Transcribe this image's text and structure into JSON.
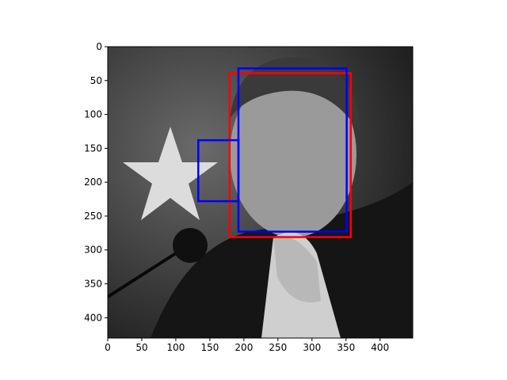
{
  "chart_data": {
    "type": "image",
    "xlim": [
      0,
      448
    ],
    "ylim": [
      430,
      0
    ],
    "xticks": [
      0,
      50,
      100,
      150,
      200,
      250,
      300,
      350,
      400
    ],
    "yticks": [
      0,
      50,
      100,
      150,
      200,
      250,
      300,
      350,
      400
    ],
    "boxes": [
      {
        "color": "#ff0000",
        "x0": 179,
        "y0": 39,
        "x1": 357,
        "y1": 281
      },
      {
        "color": "#0000ff",
        "x0": 192,
        "y0": 32,
        "x1": 351,
        "y1": 273
      },
      {
        "color": "#0000ff",
        "x0": 133,
        "y0": 138,
        "x1": 192,
        "y1": 228
      }
    ]
  }
}
